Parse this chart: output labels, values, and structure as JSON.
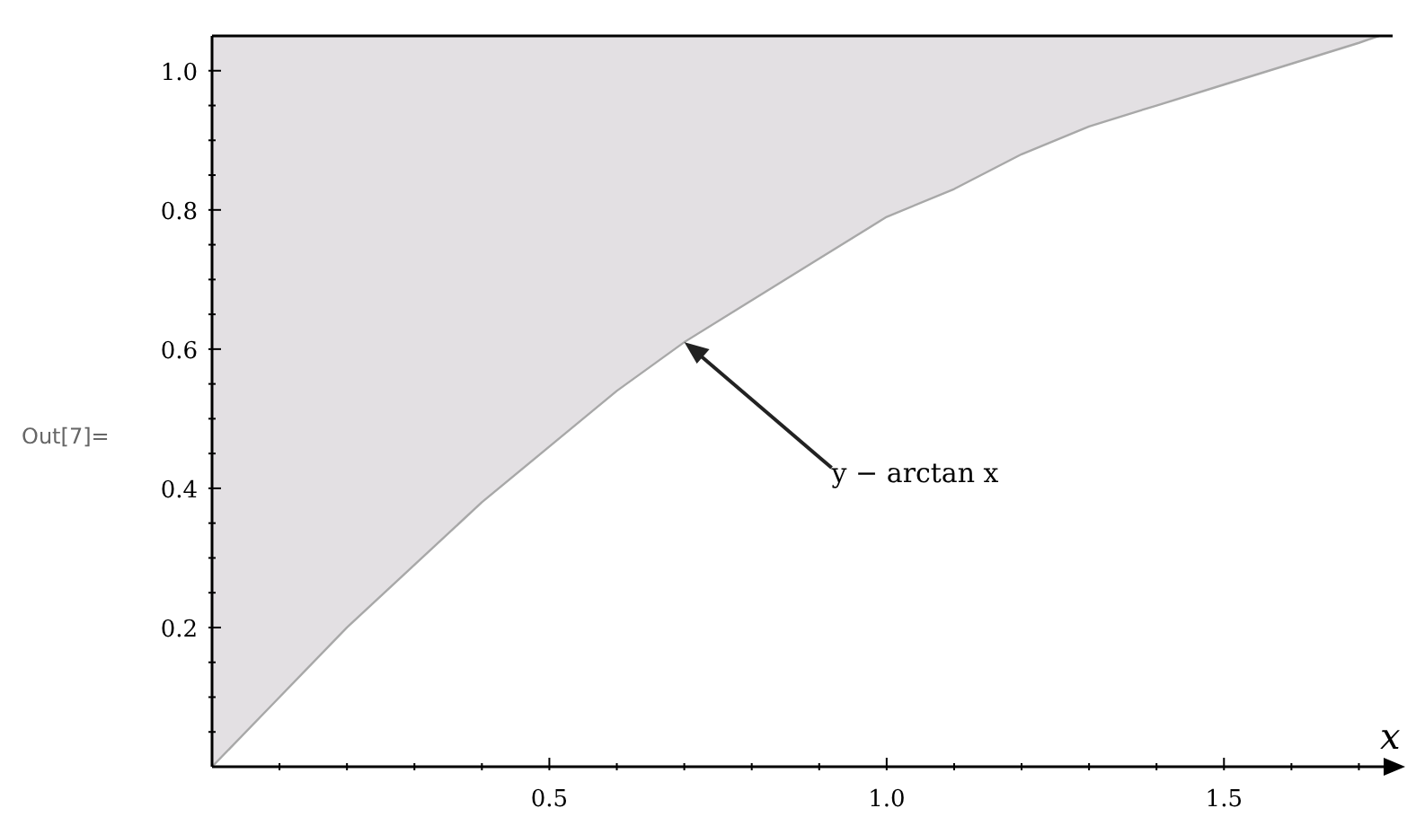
{
  "chart_data": {
    "type": "line",
    "xlabel": "x",
    "x": [
      0,
      0.1,
      0.2,
      0.3,
      0.4,
      0.5,
      0.6,
      0.7,
      0.8,
      0.9,
      1.0,
      1.1,
      1.2,
      1.3,
      1.4,
      1.5,
      1.6,
      1.7,
      1.73
    ],
    "series": [
      {
        "color": "#a8a8a8",
        "values": [
          0,
          0.1,
          0.2,
          0.29,
          0.38,
          0.46,
          0.54,
          0.61,
          0.67,
          0.73,
          0.79,
          0.83,
          0.88,
          0.92,
          0.95,
          0.98,
          1.01,
          1.04,
          1.05
        ],
        "lower": [
          0,
          0.1,
          0.2,
          0.29,
          0.38,
          0.46,
          0.54,
          0.61,
          0.67,
          0.73,
          0.79,
          0.83,
          0.88,
          0.92,
          0.95,
          0.98,
          1.01,
          1.04,
          1.05
        ],
        "upper": [
          1.05,
          1.05,
          1.05,
          1.05,
          1.05,
          1.05,
          1.05,
          1.05,
          1.05,
          1.05,
          1.05,
          1.05,
          1.05,
          1.05,
          1.05,
          1.05,
          1.05,
          1.05,
          1.05
        ]
      }
    ],
    "ref_lines": [
      {
        "axis": "y",
        "value": 1.05,
        "color": "#000000"
      }
    ],
    "annotations": [
      {
        "text": "y − arctan x",
        "x": 0.7,
        "y": 0.61
      },
      "Out[7]="
    ],
    "xlim": [
      0,
      1.75
    ],
    "xticks": [
      {
        "value": 0.1,
        "label": null
      },
      {
        "value": 0.2,
        "label": null
      },
      {
        "value": 0.3,
        "label": null
      },
      {
        "value": 0.4,
        "label": null
      },
      0.5,
      {
        "value": 0.6,
        "label": null
      },
      {
        "value": 0.7,
        "label": null
      },
      {
        "value": 0.8,
        "label": null
      },
      {
        "value": 0.9,
        "label": null
      },
      {
        "value": 1,
        "label": "1.0"
      },
      {
        "value": 1.1,
        "label": null
      },
      {
        "value": 1.2,
        "label": null
      },
      {
        "value": 1.3,
        "label": null
      },
      {
        "value": 1.4,
        "label": null
      },
      1.5,
      {
        "value": 1.6,
        "label": null
      },
      {
        "value": 1.7,
        "label": null
      }
    ],
    "ylim": [
      0,
      1.05
    ],
    "yticks": [
      {
        "value": 0.05,
        "label": null
      },
      {
        "value": 0.1,
        "label": null
      },
      {
        "value": 0.15,
        "label": null
      },
      0.2,
      {
        "value": 0.25,
        "label": null
      },
      {
        "value": 0.3,
        "label": null
      },
      {
        "value": 0.35,
        "label": null
      },
      0.4,
      {
        "value": 0.45,
        "label": null
      },
      {
        "value": 0.5,
        "label": null
      },
      {
        "value": 0.55,
        "label": null
      },
      0.6,
      {
        "value": 0.65,
        "label": null
      },
      {
        "value": 0.7,
        "label": null
      },
      {
        "value": 0.75,
        "label": null
      },
      0.8,
      {
        "value": 0.85,
        "label": null
      },
      {
        "value": 0.9,
        "label": null
      },
      {
        "value": 0.95,
        "label": null
      },
      {
        "value": 1,
        "label": "1.0"
      }
    ]
  }
}
